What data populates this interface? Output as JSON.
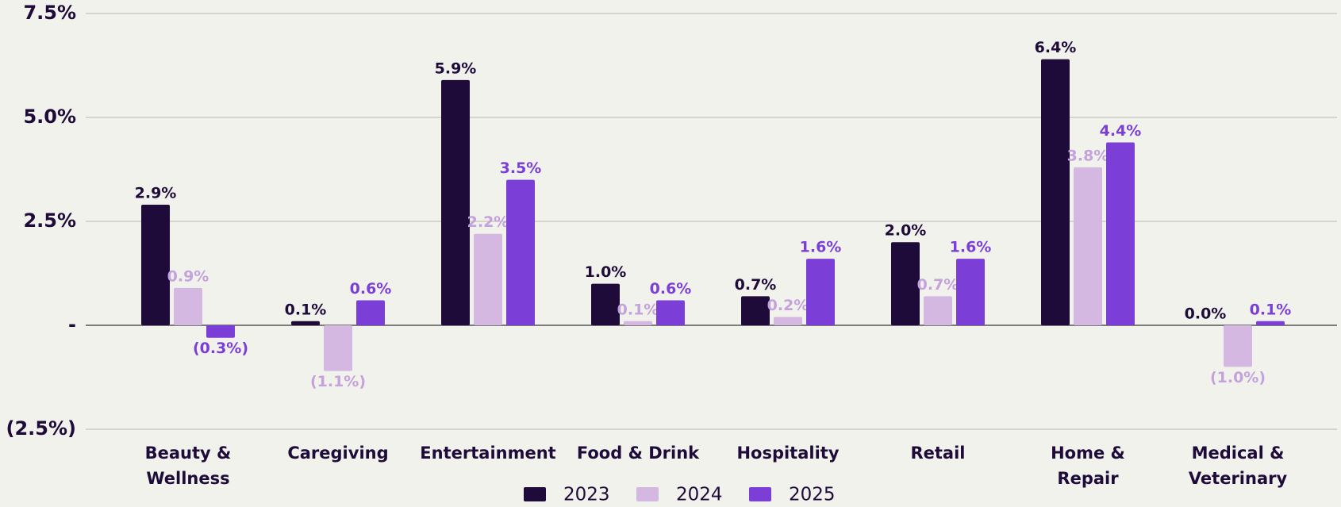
{
  "chart_data": {
    "type": "bar",
    "categories": [
      "Beauty &\nWellness",
      "Caregiving",
      "Entertainment",
      "Food & Drink",
      "Hospitality",
      "Retail",
      "Home &\nRepair",
      "Medical &\nVeterinary"
    ],
    "series": [
      {
        "name": "2023",
        "color": "#1e0b3a",
        "label_color": "#1e0b3a",
        "values": [
          2.9,
          0.1,
          5.9,
          1.0,
          0.7,
          2.0,
          6.4,
          0.0
        ],
        "value_labels": [
          "2.9%",
          "0.1%",
          "5.9%",
          "1.0%",
          "0.7%",
          "2.0%",
          "6.4%",
          "0.0%"
        ]
      },
      {
        "name": "2024",
        "color": "#d4b8e2",
        "label_color": "#c4a2dc",
        "values": [
          0.9,
          -1.1,
          2.2,
          0.1,
          0.2,
          0.7,
          3.8,
          -1.0
        ],
        "value_labels": [
          "0.9%",
          "(1.1%)",
          "2.2%",
          "0.1%",
          "0.2%",
          "0.7%",
          "3.8%",
          "(1.0%)"
        ]
      },
      {
        "name": "2025",
        "color": "#7b3fd8",
        "label_color": "#7b3fd8",
        "values": [
          -0.3,
          0.6,
          3.5,
          0.6,
          1.6,
          1.6,
          4.4,
          0.1
        ],
        "value_labels": [
          "(0.3%)",
          "0.6%",
          "3.5%",
          "0.6%",
          "1.6%",
          "1.6%",
          "4.4%",
          "0.1%"
        ]
      }
    ],
    "ylim": [
      -2.5,
      7.5
    ],
    "yticks": [
      {
        "value": -2.5,
        "label": "(2.5%)"
      },
      {
        "value": 0,
        "label": "-"
      },
      {
        "value": 2.5,
        "label": "2.5%"
      },
      {
        "value": 5,
        "label": "5.0%"
      },
      {
        "value": 7.5,
        "label": "7.5%"
      }
    ],
    "grid": true,
    "legend": "bottom"
  }
}
